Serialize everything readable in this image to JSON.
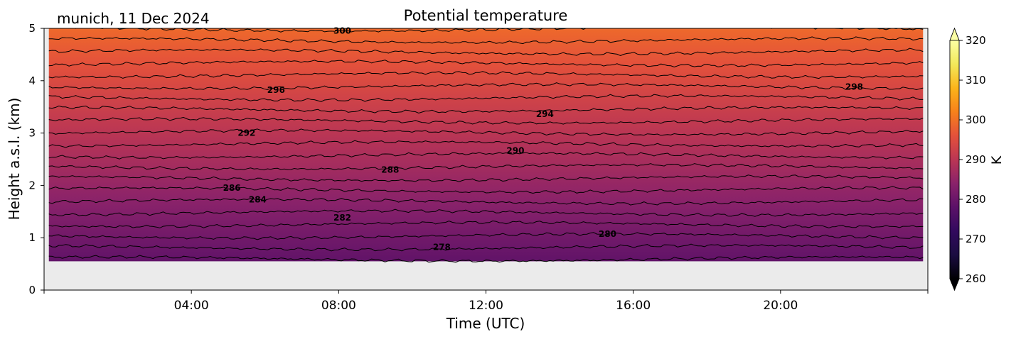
{
  "chart_data": {
    "type": "heatmap",
    "title": "Potential temperature",
    "subtitle": "munich, 11 Dec 2024",
    "xlabel": "Time (UTC)",
    "ylabel": "Height a.s.l. (km)",
    "xlim_hours": [
      0,
      24
    ],
    "ylim_km": [
      0,
      5
    ],
    "x_ticks": [
      {
        "hour": 4,
        "label": "04:00"
      },
      {
        "hour": 8,
        "label": "08:00"
      },
      {
        "hour": 12,
        "label": "12:00"
      },
      {
        "hour": 16,
        "label": "16:00"
      },
      {
        "hour": 20,
        "label": "20:00"
      }
    ],
    "y_ticks": [
      "0",
      "1",
      "2",
      "3",
      "4",
      "5"
    ],
    "data_bottom_km": 0.55,
    "colorbar": {
      "label": "K",
      "range": [
        260,
        320
      ],
      "ticks": [
        "260",
        "270",
        "280",
        "290",
        "300",
        "310",
        "320"
      ],
      "extend": "both"
    },
    "color_stops": [
      {
        "k": 260,
        "color": "#000004"
      },
      {
        "k": 266,
        "color": "#1b0c41"
      },
      {
        "k": 272,
        "color": "#320a5e"
      },
      {
        "k": 278,
        "color": "#5b1168"
      },
      {
        "k": 284,
        "color": "#8a226a"
      },
      {
        "k": 290,
        "color": "#bb3654"
      },
      {
        "k": 296,
        "color": "#e4513b"
      },
      {
        "k": 302,
        "color": "#f7811b"
      },
      {
        "k": 308,
        "color": "#fbb41a"
      },
      {
        "k": 314,
        "color": "#f3e85a"
      },
      {
        "k": 320,
        "color": "#fcffa4"
      }
    ],
    "surface_theta_k": 278.8,
    "theta_lapse_k_per_km": 4.55,
    "contour_levels": [
      278,
      279,
      280,
      281,
      282,
      283,
      284,
      285,
      286,
      287,
      288,
      289,
      290,
      291,
      292,
      293,
      294,
      295,
      296,
      297,
      298,
      299,
      300
    ],
    "contour_labels": [
      {
        "value": "278",
        "hour": 10.8,
        "km": 0.82
      },
      {
        "value": "280",
        "hour": 15.3,
        "km": 1.07
      },
      {
        "value": "282",
        "hour": 8.1,
        "km": 1.38
      },
      {
        "value": "284",
        "hour": 5.8,
        "km": 1.73
      },
      {
        "value": "286",
        "hour": 5.1,
        "km": 1.95
      },
      {
        "value": "288",
        "hour": 9.4,
        "km": 2.3
      },
      {
        "value": "290",
        "hour": 12.8,
        "km": 2.66
      },
      {
        "value": "292",
        "hour": 5.5,
        "km": 3.0
      },
      {
        "value": "294",
        "hour": 13.6,
        "km": 3.36
      },
      {
        "value": "296",
        "hour": 6.3,
        "km": 3.82
      },
      {
        "value": "298",
        "hour": 22.0,
        "km": 3.88
      },
      {
        "value": "300",
        "hour": 8.1,
        "km": 4.95
      }
    ]
  }
}
